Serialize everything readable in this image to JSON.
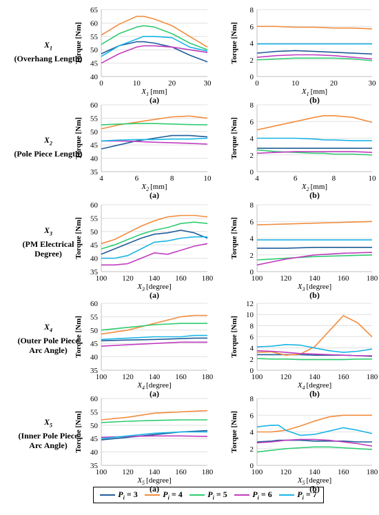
{
  "row_labels": [
    {
      "var": "X",
      "sub": "1",
      "desc": [
        "(Overhang Length)"
      ]
    },
    {
      "var": "X",
      "sub": "2",
      "desc": [
        "(Pole Piece Length)"
      ]
    },
    {
      "var": "X",
      "sub": "3",
      "desc": [
        "(PM Electrical",
        "Degree)"
      ]
    },
    {
      "var": "X",
      "sub": "4",
      "desc": [
        "(Outer Pole Piece",
        "Arc Angle)"
      ]
    },
    {
      "var": "X",
      "sub": "5",
      "desc": [
        "(Inner Pole Piece",
        "Arc Angle)"
      ]
    }
  ],
  "legend": [
    {
      "prefix": "P",
      "sub": "i",
      "value": "= 3",
      "color": "#1f5c99"
    },
    {
      "prefix": "P",
      "sub": "i",
      "value": "= 4",
      "color": "#f28c3c"
    },
    {
      "prefix": "P",
      "sub": "i",
      "value": "= 5",
      "color": "#2ecc71"
    },
    {
      "prefix": "P",
      "sub": "i",
      "value": "= 6",
      "color": "#c03cc0"
    },
    {
      "prefix": "P",
      "sub": "i",
      "value": "= 7",
      "color": "#18b4e6"
    }
  ],
  "chart_data": [
    {
      "id": "x1a",
      "type": "line",
      "panel": "(a)",
      "xvar": "X",
      "xsub": "1",
      "xunit": "[mm]",
      "ylabel": "Torque [Nm]",
      "xlim": [
        0,
        30
      ],
      "ylim": [
        40,
        65
      ],
      "xticks": [
        0,
        10,
        20,
        30
      ],
      "yticks": [
        40,
        45,
        50,
        55,
        60,
        65
      ],
      "x": [
        0,
        5,
        10,
        12,
        15,
        20,
        25,
        30
      ],
      "series": [
        {
          "name": "Pi = 3",
          "values": [
            48.5,
            51.5,
            53,
            53,
            52.5,
            51,
            48,
            45.5
          ]
        },
        {
          "name": "Pi = 4",
          "values": [
            55.5,
            59.5,
            62.5,
            62.5,
            61.5,
            59,
            55,
            51
          ]
        },
        {
          "name": "Pi = 5",
          "values": [
            52,
            56,
            58.5,
            59,
            58.5,
            56,
            52.5,
            50
          ]
        },
        {
          "name": "Pi = 6",
          "values": [
            45,
            48.5,
            51,
            51.5,
            51.5,
            51,
            50,
            49
          ]
        },
        {
          "name": "Pi = 7",
          "values": [
            47.5,
            51.5,
            54,
            55,
            55,
            54.5,
            51,
            49.5
          ]
        }
      ]
    },
    {
      "id": "x1b",
      "type": "line",
      "panel": "(b)",
      "xvar": "X",
      "xsub": "1",
      "xunit": "[mm]",
      "ylabel": "Torque [Nm]",
      "xlim": [
        0,
        30
      ],
      "ylim": [
        0,
        8
      ],
      "xticks": [
        0,
        10,
        20,
        30
      ],
      "yticks": [
        0,
        2,
        4,
        6,
        8
      ],
      "x": [
        0,
        5,
        10,
        15,
        20,
        25,
        30
      ],
      "series": [
        {
          "name": "Pi = 3",
          "values": [
            2.8,
            3,
            3.1,
            3,
            2.9,
            2.8,
            2.7
          ]
        },
        {
          "name": "Pi = 4",
          "values": [
            6,
            6,
            5.9,
            5.9,
            5.8,
            5.8,
            5.7
          ]
        },
        {
          "name": "Pi = 5",
          "values": [
            2,
            2.1,
            2.2,
            2.2,
            2.2,
            2.1,
            1.9
          ]
        },
        {
          "name": "Pi = 6",
          "values": [
            2.3,
            2.5,
            2.6,
            2.6,
            2.5,
            2.3,
            2.1
          ]
        },
        {
          "name": "Pi = 7",
          "values": [
            3.9,
            3.9,
            3.9,
            3.9,
            3.9,
            3.9,
            3.9
          ]
        }
      ]
    },
    {
      "id": "x2a",
      "type": "line",
      "panel": "(a)",
      "xvar": "X",
      "xsub": "2",
      "xunit": "[mm]",
      "ylabel": "Torque [Nm]",
      "xlim": [
        4,
        10
      ],
      "ylim": [
        35,
        60
      ],
      "xticks": [
        4,
        6,
        8,
        10
      ],
      "yticks": [
        35,
        40,
        45,
        50,
        55,
        60
      ],
      "x": [
        4,
        5,
        6,
        7,
        8,
        9,
        10
      ],
      "series": [
        {
          "name": "Pi = 3",
          "values": [
            43.5,
            45,
            46.5,
            47.5,
            48.5,
            48.5,
            48
          ]
        },
        {
          "name": "Pi = 4",
          "values": [
            51,
            52.5,
            53.5,
            54.5,
            55.5,
            55.8,
            55
          ]
        },
        {
          "name": "Pi = 5",
          "values": [
            52.5,
            52.8,
            53,
            53,
            52.8,
            52.6,
            52.5
          ]
        },
        {
          "name": "Pi = 6",
          "values": [
            46.5,
            46.5,
            46.3,
            46,
            45.8,
            45.6,
            45.3
          ]
        },
        {
          "name": "Pi = 7",
          "values": [
            46.5,
            46.8,
            47,
            47,
            47.2,
            47.2,
            47.5
          ]
        }
      ]
    },
    {
      "id": "x2b",
      "type": "line",
      "panel": "(b)",
      "xvar": "X",
      "xsub": "2",
      "xunit": "[mm]",
      "ylabel": "Torque [Nm]",
      "xlim": [
        4,
        10
      ],
      "ylim": [
        0,
        8
      ],
      "xticks": [
        4,
        6,
        8,
        10
      ],
      "yticks": [
        0,
        2,
        4,
        6,
        8
      ],
      "x": [
        4,
        5,
        6,
        7,
        7.5,
        8,
        9,
        10
      ],
      "series": [
        {
          "name": "Pi = 3",
          "values": [
            2.8,
            2.8,
            2.8,
            2.8,
            2.8,
            2.8,
            2.8,
            2.8
          ]
        },
        {
          "name": "Pi = 4",
          "values": [
            5,
            5.5,
            6,
            6.5,
            6.7,
            6.7,
            6.5,
            5.9
          ]
        },
        {
          "name": "Pi = 5",
          "values": [
            2.6,
            2.4,
            2.3,
            2.2,
            2.2,
            2.1,
            2.1,
            2
          ]
        },
        {
          "name": "Pi = 6",
          "values": [
            2.2,
            2.3,
            2.4,
            2.4,
            2.4,
            2.4,
            2.4,
            2.3
          ]
        },
        {
          "name": "Pi = 7",
          "values": [
            4,
            4,
            4,
            3.9,
            3.8,
            3.8,
            3.7,
            3.7
          ]
        }
      ]
    },
    {
      "id": "x3a",
      "type": "line",
      "panel": "(a)",
      "xvar": "X",
      "xsub": "3",
      "xunit": "[degree]",
      "ylabel": "Torque [Nm]",
      "xlim": [
        100,
        180
      ],
      "ylim": [
        35,
        60
      ],
      "xticks": [
        100,
        120,
        140,
        160,
        180
      ],
      "yticks": [
        35,
        40,
        45,
        50,
        55,
        60
      ],
      "x": [
        100,
        110,
        120,
        130,
        140,
        150,
        160,
        170,
        180
      ],
      "series": [
        {
          "name": "Pi = 3",
          "values": [
            41.5,
            43.5,
            45.5,
            47.5,
            49,
            49.5,
            50.5,
            49.5,
            47.5
          ]
        },
        {
          "name": "Pi = 4",
          "values": [
            45.5,
            47,
            49.5,
            52,
            54,
            55.5,
            56,
            56,
            55.5
          ]
        },
        {
          "name": "Pi = 5",
          "values": [
            43.5,
            45,
            47,
            49,
            50.5,
            51.5,
            53,
            53.5,
            53
          ]
        },
        {
          "name": "Pi = 6",
          "values": [
            37.5,
            37.5,
            38,
            40,
            42,
            41.5,
            43,
            44.5,
            45.5
          ]
        },
        {
          "name": "Pi = 7",
          "values": [
            40,
            40,
            41,
            43.5,
            46,
            46.5,
            47.5,
            48,
            48
          ]
        }
      ]
    },
    {
      "id": "x3b",
      "type": "line",
      "panel": "(b)",
      "xvar": "X",
      "xsub": "3",
      "xunit": "[degree]",
      "ylabel": "Torque [Nm]",
      "xlim": [
        100,
        180
      ],
      "ylim": [
        0,
        8
      ],
      "xticks": [
        100,
        120,
        140,
        160,
        180
      ],
      "yticks": [
        0,
        2,
        4,
        6,
        8
      ],
      "x": [
        100,
        120,
        140,
        160,
        180
      ],
      "series": [
        {
          "name": "Pi = 3",
          "values": [
            2.8,
            2.8,
            2.9,
            2.9,
            2.9
          ]
        },
        {
          "name": "Pi = 4",
          "values": [
            5.6,
            5.7,
            5.8,
            5.9,
            6
          ]
        },
        {
          "name": "Pi = 5",
          "values": [
            1.4,
            1.6,
            1.8,
            1.9,
            2
          ]
        },
        {
          "name": "Pi = 6",
          "values": [
            0.8,
            1.5,
            2,
            2.2,
            2.3
          ]
        },
        {
          "name": "Pi = 7",
          "values": [
            3.8,
            3.8,
            3.8,
            3.8,
            3.8
          ]
        }
      ]
    },
    {
      "id": "x4a",
      "type": "line",
      "panel": "(a)",
      "xvar": "X",
      "xsub": "4",
      "xunit": "[degree]",
      "ylabel": "Torque [Nm]",
      "xlim": [
        100,
        180
      ],
      "ylim": [
        35,
        60
      ],
      "xticks": [
        100,
        120,
        140,
        160,
        180
      ],
      "yticks": [
        35,
        40,
        45,
        50,
        55,
        60
      ],
      "x": [
        100,
        120,
        140,
        160,
        170,
        180
      ],
      "series": [
        {
          "name": "Pi = 3",
          "values": [
            46,
            46.3,
            46.5,
            46.8,
            47,
            47
          ]
        },
        {
          "name": "Pi = 4",
          "values": [
            48.5,
            50,
            52.5,
            55,
            55.5,
            55.5
          ]
        },
        {
          "name": "Pi = 5",
          "values": [
            50,
            51,
            52,
            52.5,
            52.5,
            52.5
          ]
        },
        {
          "name": "Pi = 6",
          "values": [
            44,
            44.5,
            45,
            45.5,
            45.5,
            45.5
          ]
        },
        {
          "name": "Pi = 7",
          "values": [
            46.5,
            47,
            47.5,
            47.5,
            48,
            48
          ]
        }
      ]
    },
    {
      "id": "x4b",
      "type": "line",
      "panel": "(b)",
      "xvar": "X",
      "xsub": "4",
      "xunit": "[degree]",
      "ylabel": "Torque [Nm]",
      "xlim": [
        100,
        180
      ],
      "ylim": [
        0,
        12
      ],
      "xticks": [
        100,
        120,
        140,
        160,
        180
      ],
      "yticks": [
        0,
        2,
        4,
        6,
        8,
        10,
        12
      ],
      "x": [
        100,
        110,
        120,
        130,
        140,
        150,
        160,
        170,
        180
      ],
      "series": [
        {
          "name": "Pi = 3",
          "values": [
            2.8,
            2.8,
            2.8,
            2.8,
            2.7,
            2.7,
            2.7,
            2.6,
            2.5
          ]
        },
        {
          "name": "Pi = 4",
          "values": [
            3.2,
            3.3,
            2.7,
            2.9,
            4.2,
            7,
            9.8,
            8.5,
            6
          ]
        },
        {
          "name": "Pi = 5",
          "values": [
            2.1,
            2,
            2,
            1.9,
            1.9,
            1.9,
            1.9,
            2,
            2
          ]
        },
        {
          "name": "Pi = 6",
          "values": [
            3.5,
            3.4,
            3.2,
            3,
            2.9,
            2.8,
            2.7,
            2.6,
            2.6
          ]
        },
        {
          "name": "Pi = 7",
          "values": [
            4.2,
            4.3,
            4.6,
            4.5,
            4,
            3.5,
            3.2,
            3.4,
            3.8
          ]
        }
      ]
    },
    {
      "id": "x5a",
      "type": "line",
      "panel": "(a)",
      "xvar": "X",
      "xsub": "5",
      "xunit": "[degree]",
      "ylabel": "Torque [Nm]",
      "xlim": [
        100,
        180
      ],
      "ylim": [
        35,
        60
      ],
      "xticks": [
        100,
        120,
        140,
        160,
        180
      ],
      "yticks": [
        35,
        40,
        45,
        50,
        55,
        60
      ],
      "x": [
        100,
        120,
        140,
        160,
        180
      ],
      "series": [
        {
          "name": "Pi = 3",
          "values": [
            44.5,
            45.5,
            46.5,
            47.5,
            48
          ]
        },
        {
          "name": "Pi = 4",
          "values": [
            52,
            53,
            54.5,
            55,
            55.5
          ]
        },
        {
          "name": "Pi = 5",
          "values": [
            51,
            51.5,
            51.8,
            52,
            52
          ]
        },
        {
          "name": "Pi = 6",
          "values": [
            45.5,
            45.8,
            46,
            46,
            45.8
          ]
        },
        {
          "name": "Pi = 7",
          "values": [
            45,
            46,
            47,
            47.5,
            47.5
          ]
        }
      ]
    },
    {
      "id": "x5b",
      "type": "line",
      "panel": "(b)",
      "xvar": "X",
      "xsub": "5",
      "xunit": "[degree]",
      "ylabel": "Torque [Nm]",
      "xlim": [
        100,
        180
      ],
      "ylim": [
        0,
        8
      ],
      "xticks": [
        100,
        120,
        140,
        160,
        180
      ],
      "yticks": [
        0,
        2,
        4,
        6,
        8
      ],
      "x": [
        100,
        110,
        115,
        120,
        130,
        140,
        150,
        160,
        170,
        180
      ],
      "series": [
        {
          "name": "Pi = 3",
          "values": [
            2.8,
            2.9,
            3,
            3,
            3,
            2.9,
            2.9,
            2.9,
            2.8,
            2.8
          ]
        },
        {
          "name": "Pi = 4",
          "values": [
            4,
            4,
            4.1,
            4.2,
            4.7,
            5.3,
            5.8,
            6,
            6,
            6
          ]
        },
        {
          "name": "Pi = 5",
          "values": [
            1.6,
            1.8,
            1.9,
            2,
            2.1,
            2.2,
            2.2,
            2.1,
            2,
            1.9
          ]
        },
        {
          "name": "Pi = 6",
          "values": [
            2.7,
            2.8,
            2.9,
            3,
            3.1,
            3.1,
            3,
            2.8,
            2.6,
            2.3
          ]
        },
        {
          "name": "Pi = 7",
          "values": [
            4.6,
            4.8,
            4.8,
            4.2,
            3.6,
            3.7,
            4.1,
            4.5,
            4.2,
            3.8
          ]
        }
      ]
    }
  ]
}
